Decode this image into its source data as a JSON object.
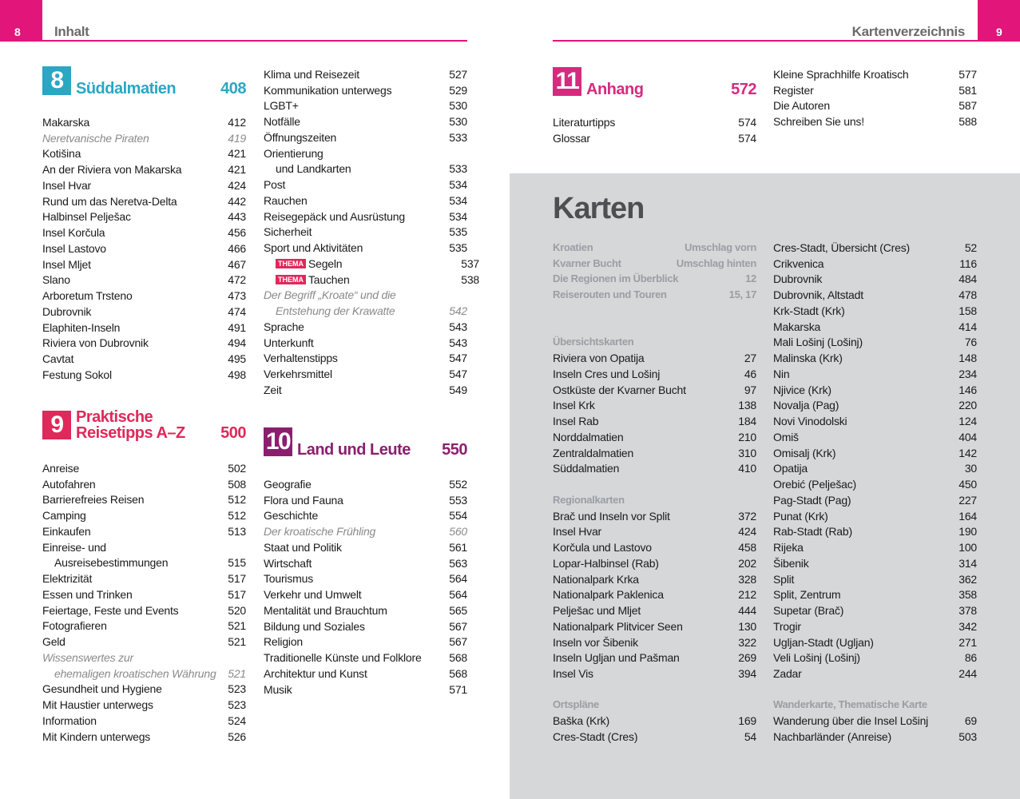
{
  "left_page": {
    "page_number": 8,
    "header": "Inhalt"
  },
  "right_page": {
    "page_number": 9,
    "header": "Kartenverzeichnis"
  },
  "chapters": [
    {
      "number": 8,
      "title": [
        "Süddalmatien"
      ],
      "page": 408,
      "color": "#2aa7c3",
      "entries": [
        {
          "title": "Makarska",
          "page": 412
        },
        {
          "title": "Neretvanische Piraten",
          "page": 419,
          "italic": true
        },
        {
          "title": "Kotišina",
          "page": 421
        },
        {
          "title": "An der Riviera von Makarska",
          "page": 421
        },
        {
          "title": "Insel Hvar",
          "page": 424
        },
        {
          "title": "Rund um das Neretva-Delta",
          "page": 442
        },
        {
          "title": "Halbinsel Pelješac",
          "page": 443
        },
        {
          "title": "Insel Korčula",
          "page": 456
        },
        {
          "title": "Insel Lastovo",
          "page": 466
        },
        {
          "title": "Insel Mljet",
          "page": 467
        },
        {
          "title": "Slano",
          "page": 472
        },
        {
          "title": "Arboretum Trsteno",
          "page": 473
        },
        {
          "title": "Dubrovnik",
          "page": 474
        },
        {
          "title": "Elaphiten-Inseln",
          "page": 491
        },
        {
          "title": "Riviera von Dubrovnik",
          "page": 494
        },
        {
          "title": "Cavtat",
          "page": 495
        },
        {
          "title": "Festung Sokol",
          "page": 498
        }
      ]
    },
    {
      "number": 9,
      "title": [
        "Praktische",
        "Reisetipps A–Z"
      ],
      "page": 500,
      "color": "#e0285a",
      "entries": [
        {
          "title": "Anreise",
          "page": 502
        },
        {
          "title": "Autofahren",
          "page": 508
        },
        {
          "title": "Barrierefreies Reisen",
          "page": 512
        },
        {
          "title": "Camping",
          "page": 512
        },
        {
          "title": "Einkaufen",
          "page": 513
        },
        {
          "title": "Einreise- und",
          "continued": "Ausreisebestimmungen",
          "page": 515
        },
        {
          "title": "Elektrizität",
          "page": 517
        },
        {
          "title": "Essen und Trinken",
          "page": 517
        },
        {
          "title": "Feiertage, Feste und Events",
          "page": 520
        },
        {
          "title": "Fotografieren",
          "page": 521
        },
        {
          "title": "Geld",
          "page": 521
        },
        {
          "title": "Wissenswertes zur",
          "continued": "ehemaligen kroatischen Währung",
          "page": 521,
          "italic": true
        },
        {
          "title": "Gesundheit und Hygiene",
          "page": 523
        },
        {
          "title": "Mit Haustier unterwegs",
          "page": 523
        },
        {
          "title": "Information",
          "page": 524
        },
        {
          "title": "Mit Kindern unterwegs",
          "page": 526
        },
        {
          "title": "Klima und Reisezeit",
          "page": 527
        },
        {
          "title": "Kommunikation unterwegs",
          "page": 529
        },
        {
          "title": "LGBT+",
          "page": 530
        },
        {
          "title": "Notfälle",
          "page": 530
        },
        {
          "title": "Öffnungszeiten",
          "page": 533
        },
        {
          "title": "Orientierung",
          "continued": "und Landkarten",
          "page": 533
        },
        {
          "title": "Post",
          "page": 534
        },
        {
          "title": "Rauchen",
          "page": 534
        },
        {
          "title": "Reisegepäck und Ausrüstung",
          "page": 534
        },
        {
          "title": "Sicherheit",
          "page": 535
        },
        {
          "title": "Sport und Aktivitäten",
          "page": 535
        },
        {
          "badge": "THEMA",
          "title": "Segeln",
          "page": 537
        },
        {
          "badge": "THEMA",
          "title": "Tauchen",
          "page": 538
        },
        {
          "title": "Der Begriff „Kroate“ und die",
          "continued": "Entstehung der Krawatte",
          "page": 542,
          "italic": true
        },
        {
          "title": "Sprache",
          "page": 543
        },
        {
          "title": "Unterkunft",
          "page": 543
        },
        {
          "title": "Verhaltenstipps",
          "page": 547
        },
        {
          "title": "Verkehrsmittel",
          "page": 547
        },
        {
          "title": "Zeit",
          "page": 549
        }
      ]
    },
    {
      "number": 10,
      "title": [
        "Land und Leute"
      ],
      "page": 550,
      "color": "#8b1f6e",
      "entries": [
        {
          "title": "Geografie",
          "page": 552
        },
        {
          "title": "Flora und Fauna",
          "page": 553
        },
        {
          "title": "Geschichte",
          "page": 554
        },
        {
          "title": "Der kroatische Frühling",
          "page": 560,
          "italic": true
        },
        {
          "title": "Staat und Politik",
          "page": 561
        },
        {
          "title": "Wirtschaft",
          "page": 563
        },
        {
          "title": "Tourismus",
          "page": 564
        },
        {
          "title": "Verkehr und Umwelt",
          "page": 564
        },
        {
          "title": "Mentalität und Brauchtum",
          "page": 565
        },
        {
          "title": "Bildung und Soziales",
          "page": 567
        },
        {
          "title": "Religion",
          "page": 567
        },
        {
          "title": "Traditionelle Künste und Folklore",
          "page": 568
        },
        {
          "title": "Architektur und Kunst",
          "page": 568
        },
        {
          "title": "Musik",
          "page": 571
        }
      ]
    },
    {
      "number": 11,
      "title": [
        "Anhang"
      ],
      "page": 572,
      "color": "#d62a7f",
      "entries": [
        {
          "title": "Literaturtipps",
          "page": 574
        },
        {
          "title": "Glossar",
          "page": 574
        },
        {
          "title": "Kleine Sprachhilfe Kroatisch",
          "page": 577
        },
        {
          "title": "Register",
          "page": 581
        },
        {
          "title": "Die Autoren",
          "page": 587
        },
        {
          "title": "Schreiben Sie uns!",
          "page": 588
        }
      ]
    }
  ],
  "maps": {
    "title": "Karten",
    "overview": [
      {
        "title": "Kroatien",
        "page": "Umschlag vorn"
      },
      {
        "title": "Kvarner Bucht",
        "page": "Umschlag hinten"
      },
      {
        "title": "Die Regionen im Überblick",
        "page": 12
      },
      {
        "title": "Reiserouten und Touren",
        "page": "15, 17"
      }
    ],
    "groups": [
      {
        "heading": "Übersichtskarten",
        "entries": [
          {
            "title": "Riviera von Opatija",
            "page": 27
          },
          {
            "title": "Inseln Cres und Lošinj",
            "page": 46
          },
          {
            "title": "Ostküste der Kvarner Bucht",
            "page": 97
          },
          {
            "title": "Insel Krk",
            "page": 138
          },
          {
            "title": "Insel Rab",
            "page": 184
          },
          {
            "title": "Norddalmatien",
            "page": 210
          },
          {
            "title": "Zentraldalmatien",
            "page": 310
          },
          {
            "title": "Süddalmatien",
            "page": 410
          }
        ]
      },
      {
        "heading": "Regionalkarten",
        "entries": [
          {
            "title": "Brač und Inseln vor Split",
            "page": 372
          },
          {
            "title": "Insel Hvar",
            "page": 424
          },
          {
            "title": "Korčula und Lastovo",
            "page": 458
          },
          {
            "title": "Lopar-Halbinsel (Rab)",
            "page": 202
          },
          {
            "title": "Nationalpark Krka",
            "page": 328
          },
          {
            "title": "Nationalpark Paklenica",
            "page": 212
          },
          {
            "title": "Pelješac und Mljet",
            "page": 444
          },
          {
            "title": "Nationalpark Plitvicer Seen",
            "page": 130
          },
          {
            "title": "Inseln vor Šibenik",
            "page": 322
          },
          {
            "title": "Inseln Ugljan und Pašman",
            "page": 269
          },
          {
            "title": "Insel Vis",
            "page": 394
          }
        ]
      },
      {
        "heading": "Ortspläne",
        "entries": [
          {
            "title": "Baška (Krk)",
            "page": 169
          },
          {
            "title": "Cres-Stadt (Cres)",
            "page": 54
          },
          {
            "title": "Cres-Stadt, Übersicht (Cres)",
            "page": 52
          },
          {
            "title": "Crikvenica",
            "page": 116
          },
          {
            "title": "Dubrovnik",
            "page": 484
          },
          {
            "title": "Dubrovnik, Altstadt",
            "page": 478
          },
          {
            "title": "Krk-Stadt (Krk)",
            "page": 158
          },
          {
            "title": "Makarska",
            "page": 414
          },
          {
            "title": "Mali Lošinj (Lošinj)",
            "page": 76
          },
          {
            "title": "Malinska (Krk)",
            "page": 148
          },
          {
            "title": "Nin",
            "page": 234
          },
          {
            "title": "Njivice (Krk)",
            "page": 146
          },
          {
            "title": "Novalja (Pag)",
            "page": 220
          },
          {
            "title": "Novi Vinodolski",
            "page": 124
          },
          {
            "title": "Omiš",
            "page": 404
          },
          {
            "title": "Omisalj (Krk)",
            "page": 142
          },
          {
            "title": "Opatija",
            "page": 30
          },
          {
            "title": "Orebić (Pelješac)",
            "page": 450
          },
          {
            "title": "Pag-Stadt (Pag)",
            "page": 227
          },
          {
            "title": "Punat (Krk)",
            "page": 164
          },
          {
            "title": "Rab-Stadt (Rab)",
            "page": 190
          },
          {
            "title": "Rijeka",
            "page": 100
          },
          {
            "title": "Šibenik",
            "page": 314
          },
          {
            "title": "Split",
            "page": 362
          },
          {
            "title": "Split, Zentrum",
            "page": 358
          },
          {
            "title": "Supetar (Brač)",
            "page": 378
          },
          {
            "title": "Trogir",
            "page": 342
          },
          {
            "title": "Ugljan-Stadt (Ugljan)",
            "page": 271
          },
          {
            "title": "Veli Lošinj (Lošinj)",
            "page": 86
          },
          {
            "title": "Zadar",
            "page": 244
          }
        ]
      },
      {
        "heading": "Wanderkarte, Thematische Karte",
        "entries": [
          {
            "title": "Wanderung über die Insel Lošinj",
            "page": 69
          },
          {
            "title": "Nachbarländer (Anreise)",
            "page": 503
          }
        ]
      }
    ]
  }
}
